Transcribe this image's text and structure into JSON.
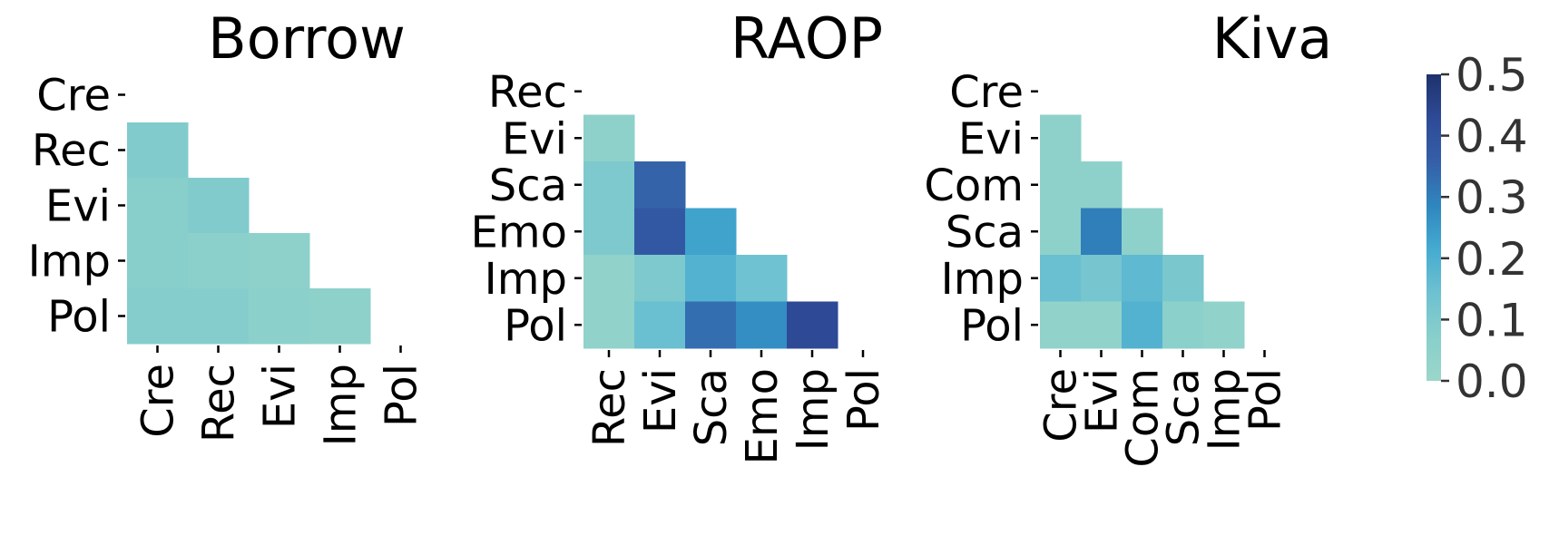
{
  "chart_data": [
    {
      "type": "heatmap",
      "title": "Borrow",
      "row_labels": [
        "Cre",
        "Rec",
        "Evi",
        "Imp",
        "Pol"
      ],
      "col_labels": [
        "Cre",
        "Rec",
        "Evi",
        "Imp",
        "Pol"
      ],
      "mask": "upper triangle incl. diagonal",
      "values": [
        [
          null,
          null,
          null,
          null,
          null
        ],
        [
          0.09,
          null,
          null,
          null,
          null
        ],
        [
          0.07,
          0.09,
          null,
          null,
          null
        ],
        [
          0.07,
          0.06,
          0.05,
          null,
          null
        ],
        [
          0.08,
          0.08,
          0.06,
          0.05,
          null
        ]
      ]
    },
    {
      "type": "heatmap",
      "title": "RAOP",
      "row_labels": [
        "Rec",
        "Evi",
        "Sca",
        "Emo",
        "Imp",
        "Pol"
      ],
      "col_labels": [
        "Rec",
        "Evi",
        "Sca",
        "Emo",
        "Imp",
        "Pol"
      ],
      "mask": "upper triangle incl. diagonal",
      "values": [
        [
          null,
          null,
          null,
          null,
          null,
          null
        ],
        [
          0.05,
          null,
          null,
          null,
          null,
          null
        ],
        [
          0.1,
          0.35,
          null,
          null,
          null,
          null
        ],
        [
          0.1,
          0.38,
          0.23,
          null,
          null,
          null
        ],
        [
          0.04,
          0.1,
          0.19,
          0.14,
          null,
          null
        ],
        [
          0.04,
          0.15,
          0.33,
          0.27,
          0.43,
          null
        ]
      ]
    },
    {
      "type": "heatmap",
      "title": "Kiva",
      "row_labels": [
        "Cre",
        "Evi",
        "Com",
        "Sca",
        "Imp",
        "Pol"
      ],
      "col_labels": [
        "Cre",
        "Evi",
        "Com",
        "Sca",
        "Imp",
        "Pol"
      ],
      "mask": "upper triangle incl. diagonal",
      "values": [
        [
          null,
          null,
          null,
          null,
          null,
          null
        ],
        [
          0.05,
          null,
          null,
          null,
          null,
          null
        ],
        [
          0.05,
          0.05,
          null,
          null,
          null,
          null
        ],
        [
          0.05,
          0.3,
          0.05,
          null,
          null,
          null
        ],
        [
          0.15,
          0.12,
          0.17,
          0.11,
          null,
          null
        ],
        [
          0.04,
          0.04,
          0.19,
          0.06,
          0.04,
          null
        ]
      ]
    }
  ],
  "colorbar": {
    "min": 0.0,
    "max": 0.5,
    "tick_values": [
      0.0,
      0.1,
      0.2,
      0.3,
      0.4,
      0.5
    ],
    "tick_labels": [
      "0.0",
      "0.1",
      "0.2",
      "0.3",
      "0.4",
      "0.5"
    ],
    "colormap": "YlGnBu",
    "colormap_stops": [
      "#9cd6c9",
      "#88cfcb",
      "#6ec1d1",
      "#45abd0",
      "#2f86bf",
      "#355fa8",
      "#2e4a97",
      "#1e326c"
    ]
  }
}
